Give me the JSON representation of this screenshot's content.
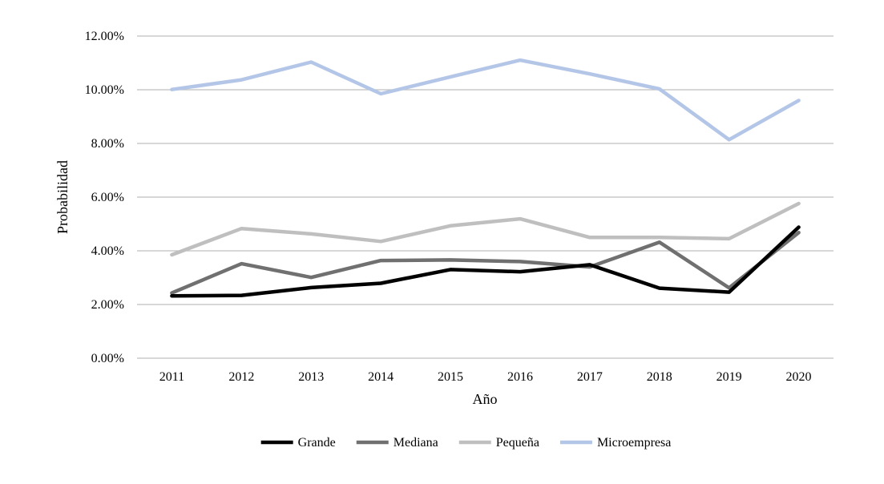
{
  "chart_data": {
    "type": "line",
    "title": "",
    "xlabel": "Año",
    "ylabel": "Probabilidad",
    "categories": [
      "2011",
      "2012",
      "2013",
      "2014",
      "2015",
      "2016",
      "2017",
      "2018",
      "2019",
      "2020"
    ],
    "ylim": [
      0,
      0.12
    ],
    "yticks": [
      0,
      0.02,
      0.04,
      0.06,
      0.08,
      0.1,
      0.12
    ],
    "ytick_labels": [
      "0.00%",
      "2.00%",
      "4.00%",
      "6.00%",
      "8.00%",
      "10.00%",
      "12.00%"
    ],
    "grid": true,
    "legend_position": "bottom",
    "series": [
      {
        "name": "Grande",
        "color": "#000000",
        "values": [
          0.0232,
          0.0234,
          0.0263,
          0.0279,
          0.033,
          0.0322,
          0.0348,
          0.0261,
          0.0246,
          0.0488
        ]
      },
      {
        "name": "Mediana",
        "color": "#707070",
        "values": [
          0.0243,
          0.0352,
          0.0301,
          0.0364,
          0.0366,
          0.036,
          0.034,
          0.0432,
          0.0262,
          0.0468
        ]
      },
      {
        "name": "Pequeña",
        "color": "#bfbfbf",
        "values": [
          0.0385,
          0.0483,
          0.0463,
          0.0435,
          0.0493,
          0.0519,
          0.045,
          0.045,
          0.0445,
          0.0576
        ]
      },
      {
        "name": "Microempresa",
        "color": "#b4c6e7",
        "values": [
          0.1001,
          0.1037,
          0.1103,
          0.0985,
          0.1048,
          0.111,
          0.1059,
          0.1003,
          0.0814,
          0.096
        ]
      }
    ]
  }
}
